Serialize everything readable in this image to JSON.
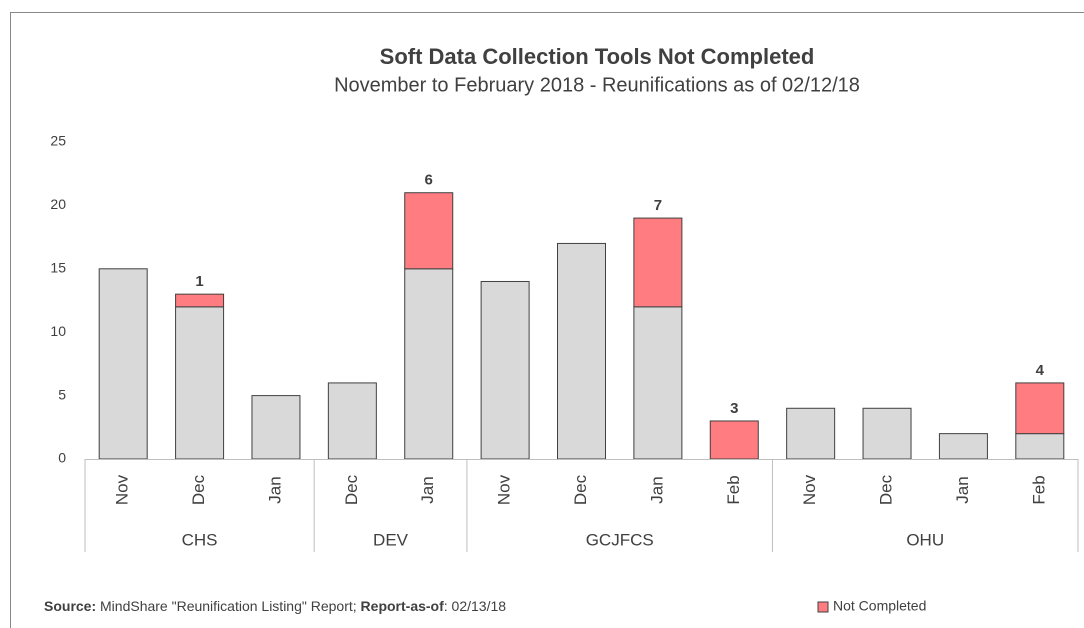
{
  "chart_data": {
    "type": "stacked_bar",
    "title": "Soft Data Collection Tools Not Completed",
    "subtitle": "November to February 2018 - Reunifications as of 02/12/18",
    "groups": [
      {
        "name": "CHS",
        "categories": [
          "Nov",
          "Dec",
          "Jan"
        ]
      },
      {
        "name": "DEV",
        "categories": [
          "Dec",
          "Jan"
        ]
      },
      {
        "name": "GCJFCS",
        "categories": [
          "Nov",
          "Dec",
          "Jan",
          "Feb"
        ]
      },
      {
        "name": "OHU",
        "categories": [
          "Nov",
          "Dec",
          "Jan",
          "Feb"
        ]
      }
    ],
    "series": [
      {
        "color": "#d9d9d9",
        "values": [
          15,
          12,
          5,
          6,
          15,
          14,
          17,
          12,
          null,
          4,
          4,
          2,
          2
        ]
      },
      {
        "name": "Not Completed",
        "color": "#ff7c80",
        "values": [
          null,
          1,
          null,
          null,
          6,
          null,
          null,
          7,
          3,
          null,
          null,
          null,
          4
        ],
        "show_labels": true
      }
    ],
    "ylim": [
      0,
      25
    ],
    "yticks": [
      0,
      5,
      10,
      15,
      20,
      25
    ],
    "grid": false,
    "footer": {
      "source_label": "Source:",
      "source_text": " MindShare \"Reunification Listing\" Report; ",
      "report_label": "Report-as-of",
      "report_text": ": 02/13/18"
    }
  }
}
